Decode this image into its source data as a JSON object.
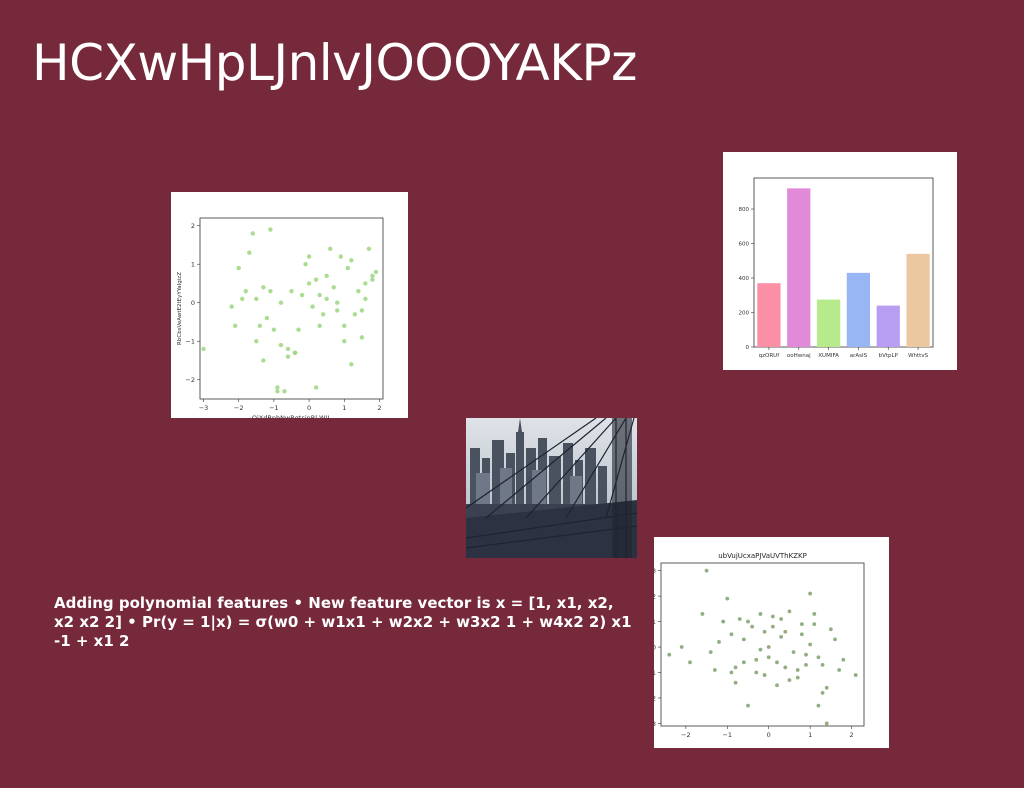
{
  "slide": {
    "title": "HCXwHpLJnlvJOOOYAKPz",
    "body_text": "Adding polynomial features • New feature vector is x = [1, x1, x2, x2 x2 2] • Pr(y = 1|x) = σ(w0 + w1x1 + w2x2 + w3x2 1 + w4x2 2) x1 -1 + x1 2",
    "background_color": "#75293a"
  },
  "chart_data": [
    {
      "type": "scatter",
      "title": "",
      "xlabel": "QiXdBnbNwRqtsinRl WIL",
      "ylabel": "RbCbsVeAwtE2tEyYYaIgizZ",
      "xlim": [
        -3.1,
        2.1
      ],
      "ylim": [
        -2.5,
        2.2
      ],
      "xticks": [
        -3,
        -2,
        -1,
        0,
        1,
        2
      ],
      "yticks": [
        -2,
        -1,
        0,
        1,
        2
      ],
      "color": "#9bd67f",
      "x": [
        -1.1,
        -0.9,
        -1.6,
        -2.0,
        -1.9,
        -1.8,
        -1.7,
        -1.5,
        -1.4,
        -1.3,
        -1.2,
        -1.1,
        -1.0,
        -0.9,
        -0.8,
        -0.6,
        -0.5,
        -0.4,
        -0.3,
        -0.2,
        -0.1,
        0.0,
        0.1,
        0.2,
        0.3,
        0.4,
        0.5,
        0.6,
        0.7,
        0.8,
        0.9,
        1.0,
        1.1,
        1.2,
        1.3,
        1.4,
        1.5,
        1.6,
        1.7,
        1.8,
        1.9,
        -2.2,
        -2.1,
        -1.5,
        -0.7,
        -0.4,
        0.0,
        0.2,
        0.5,
        0.8,
        1.0,
        1.2,
        1.5,
        1.8,
        -3.0,
        -0.8,
        -0.6,
        0.3,
        1.6,
        -1.3
      ],
      "y": [
        1.9,
        -2.2,
        1.8,
        0.9,
        0.1,
        0.3,
        1.3,
        0.1,
        -0.6,
        0.4,
        -0.4,
        0.3,
        -0.7,
        -2.3,
        0.0,
        -1.2,
        0.3,
        -1.3,
        -0.7,
        0.2,
        1.0,
        0.5,
        -0.1,
        0.6,
        0.2,
        -0.3,
        0.7,
        1.4,
        0.4,
        -0.2,
        1.2,
        -1.0,
        0.9,
        1.1,
        -0.3,
        0.3,
        -0.9,
        0.5,
        1.4,
        0.7,
        0.8,
        -0.1,
        -0.6,
        -1.0,
        -2.3,
        -1.3,
        1.2,
        -2.2,
        0.1,
        0.0,
        -0.6,
        -1.6,
        -0.2,
        0.6,
        -1.2,
        -1.1,
        -1.4,
        -0.6,
        0.1,
        -1.5
      ]
    },
    {
      "type": "bar",
      "title": "",
      "categories": [
        "qzORUf",
        "ooHwnaj",
        "XUMIFA",
        "arAsIS",
        "bVtpLP",
        "WhttvS"
      ],
      "values": [
        370,
        920,
        275,
        430,
        240,
        540
      ],
      "colors": [
        "#fb8fa5",
        "#e08ad8",
        "#b6ea8a",
        "#99b6f4",
        "#b79ef2",
        "#ecc8a0"
      ],
      "ylim": [
        0,
        980
      ],
      "yticks": [
        0,
        200,
        400,
        600,
        800
      ]
    },
    {
      "type": "scatter",
      "title": "ubVujUcxaPJVaUVThKZKP",
      "xlabel": "",
      "ylabel": "",
      "xlim": [
        -2.6,
        2.3
      ],
      "ylim": [
        -3.1,
        3.3
      ],
      "xticks": [
        -2,
        -1,
        0,
        1,
        2
      ],
      "yticks": [
        -3,
        -2,
        -1,
        0,
        1,
        2,
        3
      ],
      "color": "#7fa06a",
      "x": [
        -1.5,
        -2.1,
        -2.4,
        -1.9,
        -1.6,
        -1.3,
        -1.1,
        -1.0,
        -0.9,
        -0.8,
        -0.7,
        -0.6,
        -0.5,
        -0.4,
        -0.3,
        -0.2,
        -0.1,
        0.0,
        0.1,
        0.2,
        0.3,
        0.4,
        0.5,
        0.6,
        0.7,
        0.8,
        0.9,
        1.0,
        1.1,
        1.2,
        1.3,
        1.4,
        1.5,
        1.6,
        1.7,
        1.8,
        2.1,
        -1.4,
        -1.2,
        -0.9,
        -0.6,
        -0.3,
        0.0,
        0.2,
        0.5,
        0.8,
        1.0,
        1.2,
        1.4,
        0.9,
        -0.5,
        -0.1,
        0.4,
        0.7,
        1.1,
        -0.8,
        0.1,
        0.3,
        -0.2,
        1.3
      ],
      "y": [
        3.0,
        0.0,
        -0.3,
        -0.6,
        1.3,
        -0.9,
        1.0,
        1.9,
        0.5,
        -1.4,
        1.1,
        -0.6,
        -2.3,
        0.8,
        -1.0,
        1.3,
        0.6,
        -0.4,
        1.2,
        -1.5,
        0.4,
        -0.8,
        1.4,
        -0.2,
        -1.2,
        0.5,
        -0.7,
        2.1,
        0.9,
        -2.3,
        -1.8,
        -3.0,
        0.7,
        0.3,
        -0.9,
        -0.5,
        -1.1,
        -0.2,
        0.2,
        -1.0,
        0.3,
        -0.5,
        0.0,
        -0.6,
        -1.3,
        0.9,
        0.1,
        -0.4,
        -1.6,
        -0.3,
        1.0,
        -1.1,
        0.6,
        -0.9,
        1.3,
        -0.8,
        0.8,
        1.1,
        -0.1,
        -0.7
      ]
    }
  ]
}
